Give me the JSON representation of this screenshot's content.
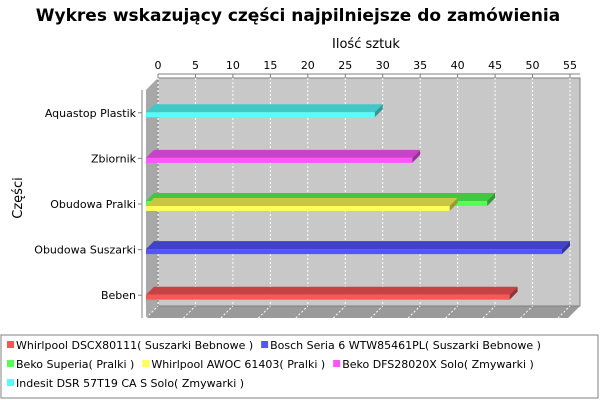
{
  "chart_data": {
    "type": "bar",
    "orientation": "horizontal",
    "title": "Wykres wskazujący części najpilniejsze do zamówienia",
    "xlabel": "Ilość sztuk",
    "ylabel": "Części",
    "xlim": [
      0,
      55
    ],
    "xticks": [
      0,
      5,
      10,
      15,
      20,
      25,
      30,
      35,
      40,
      45,
      50,
      55
    ],
    "grid": true,
    "legend_position": "bottom",
    "categories": [
      "Aquastop Plastik",
      "Zbiornik",
      "Obudowa Pralki",
      "Obudowa Suszarki",
      "Beben"
    ],
    "series": [
      {
        "name": "Whirlpool DSCX80111( Suszarki Bebnowe )",
        "color": "#ff5555",
        "values": [
          null,
          null,
          null,
          null,
          48
        ]
      },
      {
        "name": "Bosch Seria 6 WTW85461PL( Suszarki Bebnowe )",
        "color": "#5555ff",
        "values": [
          null,
          null,
          null,
          55,
          null
        ]
      },
      {
        "name": "Beko Superia( Pralki )",
        "color": "#55ff55",
        "values": [
          null,
          null,
          45,
          null,
          null
        ]
      },
      {
        "name": "Whirlpool AWOC 61403( Pralki )",
        "color": "#ffff55",
        "values": [
          null,
          null,
          40,
          null,
          null
        ]
      },
      {
        "name": "Beko DFS28020X Solo( Zmywarki )",
        "color": "#ff55ff",
        "values": [
          null,
          35,
          null,
          null,
          null
        ]
      },
      {
        "name": "Indesit DSR 57T19 CA S Solo( Zmywarki )",
        "color": "#55ffff",
        "values": [
          30,
          null,
          null,
          null,
          null
        ]
      }
    ]
  }
}
